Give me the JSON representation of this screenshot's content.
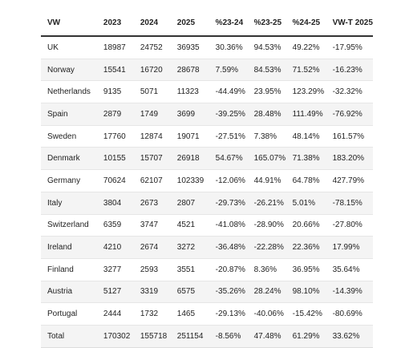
{
  "top_text": "",
  "table": {
    "headers": [
      "VW",
      "2023",
      "2024",
      "2025",
      "%23-24",
      "%23-25",
      "%24-25",
      "VW-T 2025"
    ],
    "rows": [
      [
        "UK",
        "18987",
        "24752",
        "36935",
        "30.36%",
        "94.53%",
        "49.22%",
        "-17.95%"
      ],
      [
        "Norway",
        "15541",
        "16720",
        "28678",
        "7.59%",
        "84.53%",
        "71.52%",
        "-16.23%"
      ],
      [
        "Netherlands",
        "9135",
        "5071",
        "11323",
        "-44.49%",
        "23.95%",
        "123.29%",
        "-32.32%"
      ],
      [
        "Spain",
        "2879",
        "1749",
        "3699",
        "-39.25%",
        "28.48%",
        "111.49%",
        "-76.92%"
      ],
      [
        "Sweden",
        "17760",
        "12874",
        "19071",
        "-27.51%",
        "7.38%",
        "48.14%",
        "161.57%"
      ],
      [
        "Denmark",
        "10155",
        "15707",
        "26918",
        "54.67%",
        "165.07%",
        "71.38%",
        "183.20%"
      ],
      [
        "Germany",
        "70624",
        "62107",
        "102339",
        "-12.06%",
        "44.91%",
        "64.78%",
        "427.79%"
      ],
      [
        "Italy",
        "3804",
        "2673",
        "2807",
        "-29.73%",
        "-26.21%",
        "5.01%",
        "-78.15%"
      ],
      [
        "Switzerland",
        "6359",
        "3747",
        "4521",
        "-41.08%",
        "-28.90%",
        "20.66%",
        "-27.80%"
      ],
      [
        "Ireland",
        "4210",
        "2674",
        "3272",
        "-36.48%",
        "-22.28%",
        "22.36%",
        "17.99%"
      ],
      [
        "Finland",
        "3277",
        "2593",
        "3551",
        "-20.87%",
        "8.36%",
        "36.95%",
        "35.64%"
      ],
      [
        "Austria",
        "5127",
        "3319",
        "6575",
        "-35.26%",
        "28.24%",
        "98.10%",
        "-14.39%"
      ],
      [
        "Portugal",
        "2444",
        "1732",
        "1465",
        "-29.13%",
        "-40.06%",
        "-15.42%",
        "-80.69%"
      ],
      [
        "Total",
        "170302",
        "155718",
        "251154",
        "-8.56%",
        "47.48%",
        "61.29%",
        "33.62%"
      ]
    ]
  }
}
